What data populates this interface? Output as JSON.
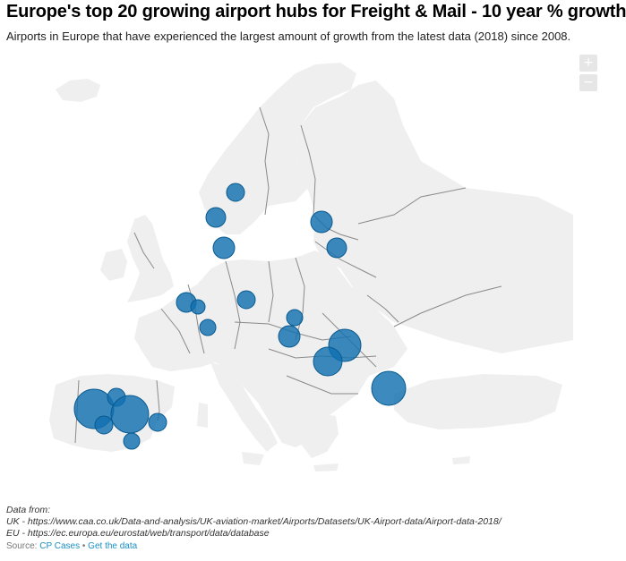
{
  "header": {
    "title": "Europe's top 20 growing airport hubs for Freight & Mail - 10 year % growth",
    "subtitle": "Airports in Europe that have experienced the largest amount of growth from the latest data (2018) since 2008."
  },
  "controls": {
    "zoom_in": "+",
    "zoom_out": "−"
  },
  "notes": {
    "line1": "Data from:",
    "line2": "UK - https://www.caa.co.uk/Data-and-analysis/UK-aviation-market/Airports/Datasets/UK-Airport-data/Airport-data-2018/",
    "line3": "EU - https://ec.europa.eu/eurostat/web/transport/data/database"
  },
  "footer": {
    "source_label": "Source:",
    "source_link": "CP Cases",
    "separator": "•",
    "data_link": "Get the data"
  },
  "colors": {
    "bubble": "#1170b0",
    "land": "#efefef",
    "border": "#8a8a8a",
    "link": "#1a8fc4"
  }
}
